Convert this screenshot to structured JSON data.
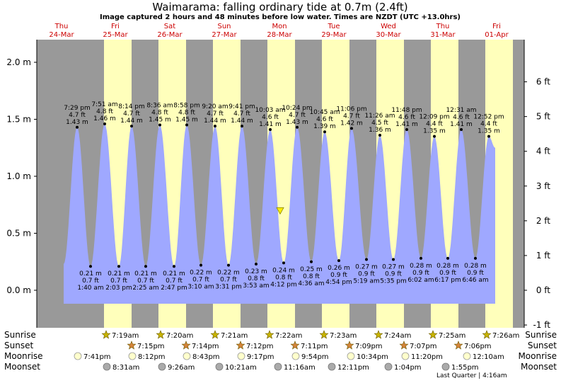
{
  "chart_data": {
    "type": "area",
    "title": "Waimarama: falling  ordinary tide at 0.7m (2.4ft)",
    "subtitle": "Image captured 2 hours and 48 minutes before low water. Times are NZDT (UTC +13.0hrs)",
    "y_left_ticks": [
      "2.0 m",
      "1.5 m",
      "1.0 m",
      "0.5 m",
      "0.0 m"
    ],
    "y_right_ticks": [
      "6 ft",
      "5 ft",
      "4 ft",
      "3 ft",
      "2 ft",
      "1 ft",
      "0 ft",
      "-1 ft"
    ],
    "ylim_m": [
      -0.25,
      2.0
    ],
    "days": [
      {
        "dow": "Thu",
        "date": "24-Mar"
      },
      {
        "dow": "Fri",
        "date": "25-Mar"
      },
      {
        "dow": "Sat",
        "date": "26-Mar"
      },
      {
        "dow": "Sun",
        "date": "27-Mar"
      },
      {
        "dow": "Mon",
        "date": "28-Mar"
      },
      {
        "dow": "Tue",
        "date": "29-Mar"
      },
      {
        "dow": "Wed",
        "date": "30-Mar"
      },
      {
        "dow": "Thu",
        "date": "31-Mar"
      },
      {
        "dow": "Fri",
        "date": "01-Apr"
      }
    ],
    "current_tide_m": 0.7,
    "high_tides": [
      {
        "time": "7:29 pm",
        "ft": "4.7 ft",
        "m": "1.43 m",
        "value": 1.43
      },
      {
        "time": "7:51 am",
        "ft": "4.8 ft",
        "m": "1.46 m",
        "value": 1.46
      },
      {
        "time": "8:14 pm",
        "ft": "4.7 ft",
        "m": "1.44 m",
        "value": 1.44
      },
      {
        "time": "8:36 am",
        "ft": "4.8 ft",
        "m": "1.45 m",
        "value": 1.45
      },
      {
        "time": "8:58 pm",
        "ft": "4.8 ft",
        "m": "1.45 m",
        "value": 1.45
      },
      {
        "time": "9:20 am",
        "ft": "4.7 ft",
        "m": "1.44 m",
        "value": 1.44
      },
      {
        "time": "9:41 pm",
        "ft": "4.7 ft",
        "m": "1.44 m",
        "value": 1.44
      },
      {
        "time": "10:03 am",
        "ft": "4.6 ft",
        "m": "1.41 m",
        "value": 1.41
      },
      {
        "time": "10:24 pm",
        "ft": "4.7 ft",
        "m": "1.43 m",
        "value": 1.43
      },
      {
        "time": "10:45 am",
        "ft": "4.6 ft",
        "m": "1.39 m",
        "value": 1.39
      },
      {
        "time": "11:06 pm",
        "ft": "4.7 ft",
        "m": "1.42 m",
        "value": 1.42
      },
      {
        "time": "11:26 am",
        "ft": "4.5 ft",
        "m": "1.36 m",
        "value": 1.36
      },
      {
        "time": "11:48 pm",
        "ft": "4.6 ft",
        "m": "1.41 m",
        "value": 1.41
      },
      {
        "time": "12:09 pm",
        "ft": "4.4 ft",
        "m": "1.35 m",
        "value": 1.35
      },
      {
        "time": "12:31 am",
        "ft": "4.6 ft",
        "m": "1.41 m",
        "value": 1.41
      },
      {
        "time": "12:52 pm",
        "ft": "4.4 ft",
        "m": "1.35 m",
        "value": 1.35
      }
    ],
    "low_tides": [
      {
        "m": "0.21 m",
        "ft": "0.7 ft",
        "time": "1:40 am",
        "value": 0.21
      },
      {
        "m": "0.21 m",
        "ft": "0.7 ft",
        "time": "2:03 pm",
        "value": 0.21
      },
      {
        "m": "0.21 m",
        "ft": "0.7 ft",
        "time": "2:25 am",
        "value": 0.21
      },
      {
        "m": "0.21 m",
        "ft": "0.7 ft",
        "time": "2:47 pm",
        "value": 0.21
      },
      {
        "m": "0.22 m",
        "ft": "0.7 ft",
        "time": "3:10 am",
        "value": 0.22
      },
      {
        "m": "0.22 m",
        "ft": "0.7 ft",
        "time": "3:31 pm",
        "value": 0.22
      },
      {
        "m": "0.23 m",
        "ft": "0.8 ft",
        "time": "3:53 am",
        "value": 0.23
      },
      {
        "m": "0.24 m",
        "ft": "0.8 ft",
        "time": "4:12 pm",
        "value": 0.24
      },
      {
        "m": "0.25 m",
        "ft": "0.8 ft",
        "time": "4:36 am",
        "value": 0.25
      },
      {
        "m": "0.26 m",
        "ft": "0.9 ft",
        "time": "4:54 pm",
        "value": 0.26
      },
      {
        "m": "0.27 m",
        "ft": "0.9 ft",
        "time": "5:19 am",
        "value": 0.27
      },
      {
        "m": "0.27 m",
        "ft": "0.9 ft",
        "time": "5:35 pm",
        "value": 0.27
      },
      {
        "m": "0.28 m",
        "ft": "0.9 ft",
        "time": "6:02 am",
        "value": 0.28
      },
      {
        "m": "0.28 m",
        "ft": "0.9 ft",
        "time": "6:17 pm",
        "value": 0.28
      },
      {
        "m": "0.28 m",
        "ft": "0.9 ft",
        "time": "6:46 am",
        "value": 0.28
      }
    ],
    "sun_moon_labels": {
      "sunrise": "Sunrise",
      "sunset": "Sunset",
      "moonrise": "Moonrise",
      "moonset": "Moonset"
    },
    "sunrise": [
      "7:19am",
      "7:20am",
      "7:21am",
      "7:22am",
      "7:23am",
      "7:24am",
      "7:25am",
      "7:26am"
    ],
    "sunset": [
      "7:15pm",
      "7:14pm",
      "7:12pm",
      "7:11pm",
      "7:09pm",
      "7:07pm",
      "7:06pm"
    ],
    "moonrise": [
      "7:41pm",
      "8:12pm",
      "8:43pm",
      "9:17pm",
      "9:54pm",
      "10:34pm",
      "11:20pm",
      "12:10am"
    ],
    "moonset": [
      "8:31am",
      "9:26am",
      "10:21am",
      "11:16am",
      "12:11pm",
      "1:04pm",
      "1:55pm"
    ],
    "moon_phase_note": "Last Quarter | 4:16am",
    "colors": {
      "night": "#999999",
      "day": "#ffffbb",
      "water": "#9fa8ff",
      "day_label": "#cc0000",
      "sunrise_star": "#c8b400",
      "sunset_star": "#d4843a",
      "moonrise_fill": "#ffffcc",
      "moonset_fill": "#aaaaaa"
    }
  }
}
